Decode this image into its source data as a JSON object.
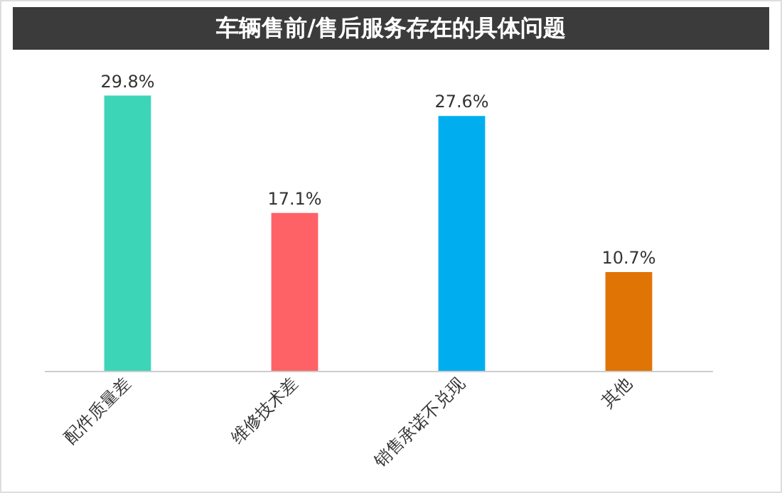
{
  "chart_data": {
    "type": "bar",
    "title": "车辆售前/售后服务存在的具体问题",
    "categories": [
      "配件质量差",
      "维修技术差",
      "销售承诺不兑现",
      "其他"
    ],
    "values": [
      29.8,
      17.1,
      27.6,
      10.7
    ],
    "colors": [
      "#3dd5b7",
      "#ff6266",
      "#00aeef",
      "#e07405"
    ],
    "value_labels": [
      "29.8%",
      "17.1%",
      "27.6%",
      "10.7%"
    ],
    "tick_labels": "x"
  }
}
